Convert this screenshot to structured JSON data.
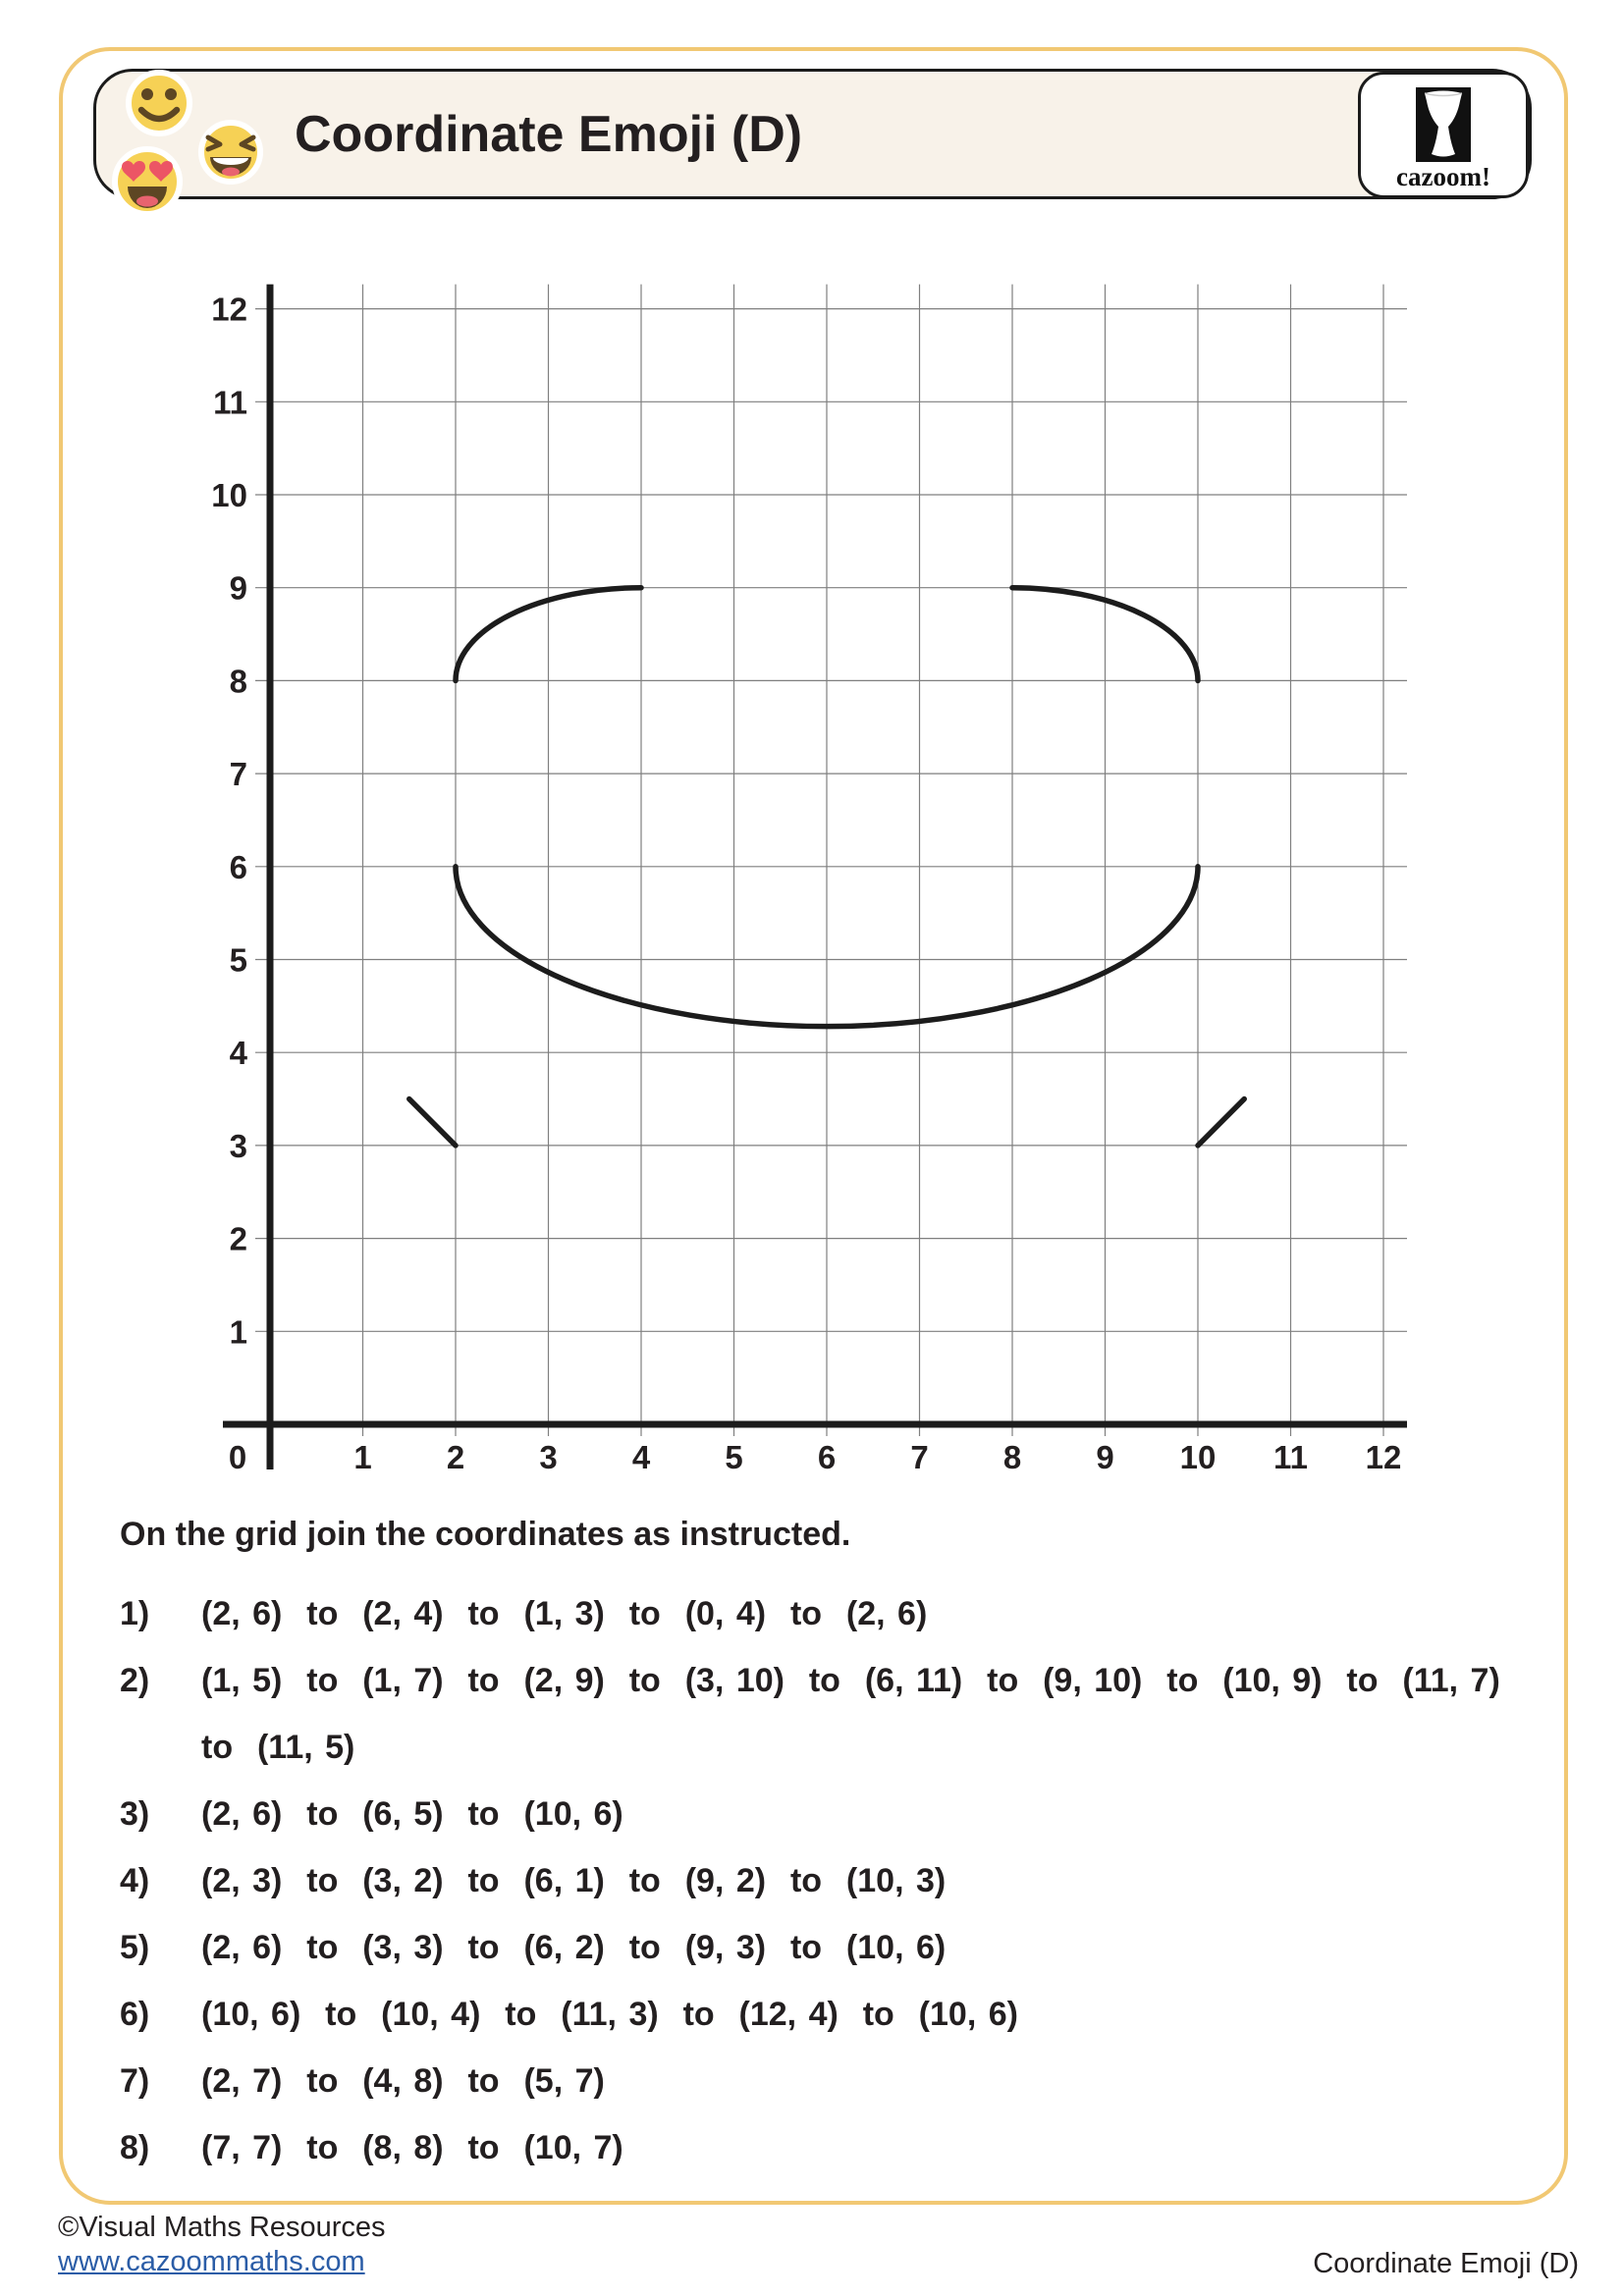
{
  "header": {
    "title": "Coordinate Emoji (D)",
    "logo_text": "cazoom!",
    "emojis": [
      "smiling-face",
      "grinning-squint-face",
      "heart-eyes-face"
    ]
  },
  "colors": {
    "page_border": "#F1C873",
    "header_fill": "#F8F2E9",
    "ink": "#231F20",
    "grid_line": "#7F7F7F",
    "axis": "#1C1C1C",
    "curve": "#1C1C1C",
    "link_blue": "#2B5DA7",
    "emoji_yellow": "#F6D155",
    "emoji_brown": "#5D4623",
    "emoji_pink": "#E8636F",
    "heart_red": "#EC5565"
  },
  "chart_data": {
    "type": "line",
    "description": "Blank 12x12 coordinate grid with partially drawn emoji curves",
    "x_axis": {
      "min": 0,
      "max": 12,
      "tick_labels": [
        "0",
        "1",
        "2",
        "3",
        "4",
        "5",
        "6",
        "7",
        "8",
        "9",
        "10",
        "11",
        "12"
      ]
    },
    "y_axis": {
      "min": 0,
      "max": 12,
      "tick_labels": [
        "1",
        "2",
        "3",
        "4",
        "5",
        "6",
        "7",
        "8",
        "9",
        "10",
        "11",
        "12"
      ]
    },
    "grid": true,
    "curves": [
      {
        "name": "left-eyebrow-arc",
        "type": "arc",
        "from": [
          2,
          8
        ],
        "to": [
          4,
          9
        ],
        "rx": 2,
        "ry": 1,
        "sweep": 1
      },
      {
        "name": "right-eyebrow-arc",
        "type": "arc",
        "from": [
          8,
          9
        ],
        "to": [
          10,
          8
        ],
        "rx": 2,
        "ry": 1,
        "sweep": 1
      },
      {
        "name": "smile-arc",
        "type": "arc",
        "from": [
          2,
          6
        ],
        "to": [
          10,
          6
        ],
        "rx": 4,
        "ry": 1.72,
        "sweep": 0
      },
      {
        "name": "left-dash",
        "type": "line",
        "from": [
          1.5,
          3.5
        ],
        "to": [
          2,
          3
        ]
      },
      {
        "name": "right-dash",
        "type": "line",
        "from": [
          10,
          3
        ],
        "to": [
          10.5,
          3.5
        ]
      }
    ]
  },
  "instructions": {
    "heading": "On the grid join the coordinates as instructed.",
    "items": [
      {
        "num": "1)",
        "text": "(2, 6)  to  (2, 4)  to  (1, 3)  to  (0, 4)  to  (2, 6)"
      },
      {
        "num": "2)",
        "text": "(1, 5)  to  (1, 7)  to  (2, 9)  to  (3, 10)  to  (6, 11)  to  (9, 10)  to  (10, 9)  to  (11, 7)\nto  (11, 5)"
      },
      {
        "num": "3)",
        "text": "(2, 6)  to  (6, 5)  to  (10, 6)"
      },
      {
        "num": "4)",
        "text": "(2, 3)  to  (3, 2)  to  (6, 1)  to  (9, 2)  to  (10, 3)"
      },
      {
        "num": "5)",
        "text": "(2, 6)  to  (3, 3)  to  (6, 2)  to  (9, 3)  to  (10, 6)"
      },
      {
        "num": "6)",
        "text": "(10, 6)  to  (10, 4)  to  (11, 3)  to  (12, 4)  to  (10, 6)"
      },
      {
        "num": "7)",
        "text": "(2, 7)  to  (4, 8)  to  (5, 7)"
      },
      {
        "num": "8)",
        "text": "(7, 7)  to  (8, 8)  to  (10, 7)"
      }
    ]
  },
  "footer": {
    "copyright": "©Visual Maths Resources",
    "link": "www.cazoommaths.com",
    "doc_label": "Coordinate Emoji (D)"
  }
}
